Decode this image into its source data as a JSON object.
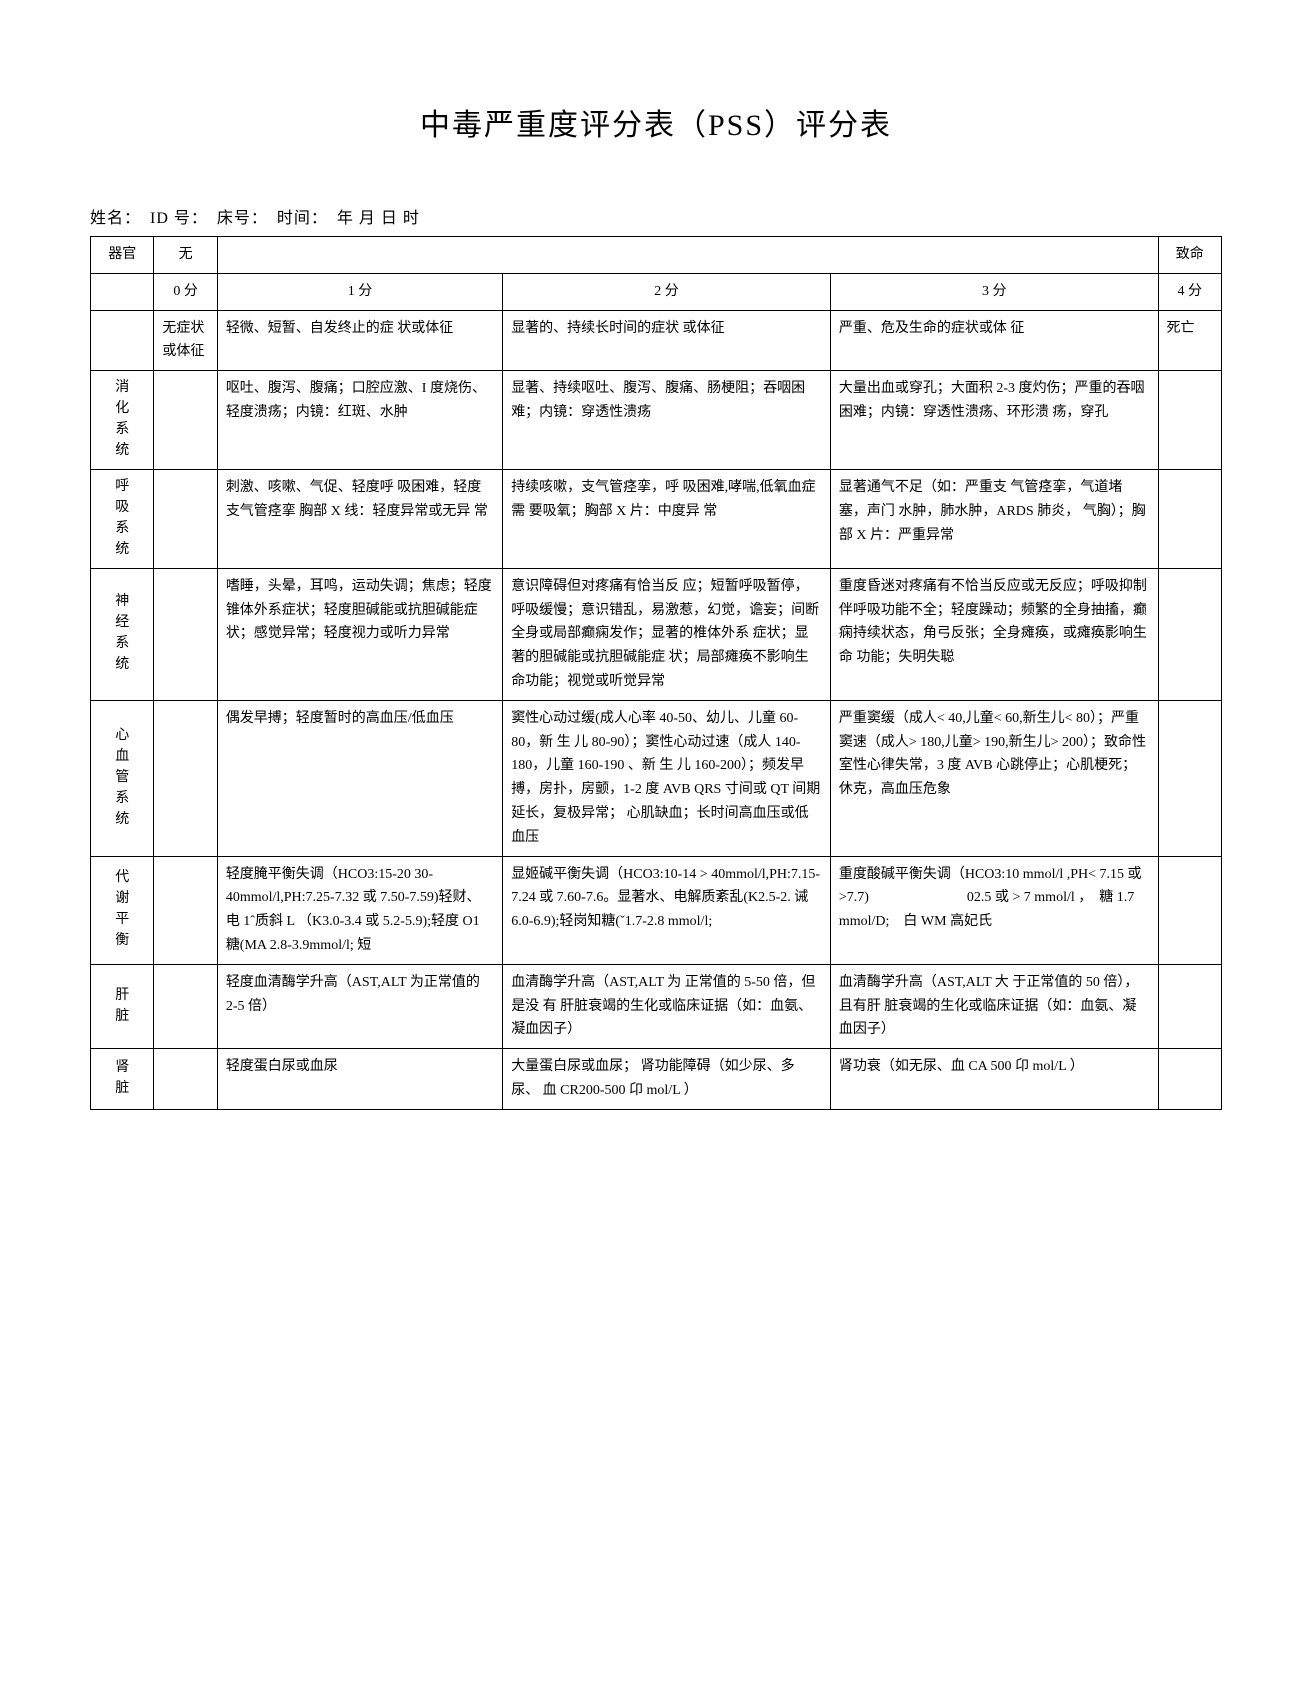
{
  "title": "中毒严重度评分表（PSS）评分表",
  "patient_info": "姓名：　ID 号：　床号：　时间：　年 月 日 时",
  "header": {
    "organ": "器官",
    "none_label": "无",
    "fatal_label": "致命",
    "scores": [
      "0 分",
      "1 分",
      "2 分",
      "3 分",
      "4 分"
    ]
  },
  "general_row": {
    "none": "无症状或体征",
    "s1": "轻微、短暂、自发终止的症 状或体征",
    "s2": "显著的、持续长时间的症状 或体征",
    "s3": "严重、危及生命的症状或体 征",
    "s4": "死亡"
  },
  "systems": {
    "digestive": {
      "label": "消化系统",
      "s1": "呕吐、腹泻、腹痛；口腔应激、I 度烧伤、 轻度溃疡；内镜：红斑、水肿",
      "s2": "显著、持续呕吐、腹泻、腹痛、肠梗阻；吞咽困难；内镜：穿透性溃疡",
      "s3": "大量出血或穿孔；大面积 2-3 度灼伤；严重的吞咽困难；内镜：穿透性溃疡、环形溃 疡，穿孔"
    },
    "respiratory": {
      "label": "呼吸系统",
      "s1": "刺激、咳嗽、气促、轻度呼 吸困难，轻度支气管痉挛 胸部 X 线：轻度异常或无异 常",
      "s2": "持续咳嗽，支气管痉挛，呼 吸困难,哮喘,低氧血症需 要吸氧；胸部 X 片：中度异 常",
      "s3": "显著通气不足（如：严重支 气管痉挛，气道堵塞，声门 水肿，肺水肿，ARDS 肺炎， 气胸）；胸部 X 片：严重异常"
    },
    "nervous": {
      "label": "神经系统",
      "s1": "嗜睡，头晕，耳鸣，运动失调；焦虑；轻度锥体外系症状；轻度胆碱能或抗胆碱能症状；感觉异常；轻度视力或听力异常",
      "s2": "意识障碍但对疼痛有恰当反 应；短暂呼吸暂停，呼吸缓慢；意识错乱，易激惹，幻觉，谵妄；间断全身或局部癫痫发作；显著的椎体外系 症状；显著的胆碱能或抗胆碱能症 状；局部瘫痪不影响生命功能；视觉或听觉异常",
      "s3": "重度昏迷对疼痛有不恰当反应或无反应；呼吸抑制伴呼吸功能不全；轻度躁动；频繁的全身抽搐，癫痫持续状态，角弓反张；全身瘫痪，或瘫痪影响生命 功能；失明失聪"
    },
    "cardio": {
      "label": "心 血 管系统",
      "s1": "偶发早搏；轻度暂时的高血压/低血压",
      "s2": "窦性心动过缓(成人心率 40-50、幼儿、儿童 60-80，新 生 儿 80-90）；窦性心动过速（成人 140-180，儿童 160-190 、新 生 儿 160-200）；频发早搏，房扑，房颤，1-2 度 AVB QRS 寸间或 QT 间期 延长，复极异常； 心肌缺血；长时间高血压或低血压",
      "s3": "严重窦缓（成人< 40,儿童< 60,新生儿< 80）；严重窦速（成人> 180,儿童> 190,新生儿> 200）；致命性室性心律失常，3 度 AVB 心跳停止；心肌梗死；休克，高血压危象"
    },
    "metabolic": {
      "label": "代谢平衡",
      "s1": "轻度腌平衡失调（HCO3:15-20 30-40mmol/l,PH:7.25-7.32 或 7.50-7.59)轻财、电 1ˆ质斜 L （K3.0-3.4 或 5.2-5.9);轻度 O1 糖(MA 2.8-3.9mmol/l; 短",
      "s2": "显姬碱平衡失调（HCO3:10-14 > 40mmol/l,PH:7.15-7.24 或 7.60-7.6。显著水、电解质紊乱(K2.5-2. 诫 6.0-6.9);轻岗知糖(ˇ1.7-2.8 mmol/l;",
      "s3": "重度酸碱平衡失调（HCO3:10 mmol/l ,PH< 7.15 或 >7.7)　　　　　　　02.5 或 > 7 mmol/l ，　糖 1.7 mmol/D;　白 WM 高妃氏"
    },
    "liver": {
      "label": "肝脏",
      "s1": "轻度血清酶学升高（AST,ALT 为正常值的 2-5 倍）",
      "s2": "血清酶学升高（AST,ALT 为 正常值的 5-50 倍，但是没 有 肝脏衰竭的生化或临床证据（如：血氨、凝血因子）",
      "s3": "血清酶学升高（AST,ALT 大 于正常值的 50 倍），且有肝 脏衰竭的生化或临床证据（如：血氨、凝血因子）"
    },
    "kidney": {
      "label": "肾脏",
      "s1": "轻度蛋白尿或血尿",
      "s2": "大量蛋白尿或血尿； 肾功能障碍（如少尿、多尿、 血 CR200-500 卬 mol/L ）",
      "s3": "肾功衰（如无尿、血 CA 500 卬 mol/L ）"
    }
  }
}
